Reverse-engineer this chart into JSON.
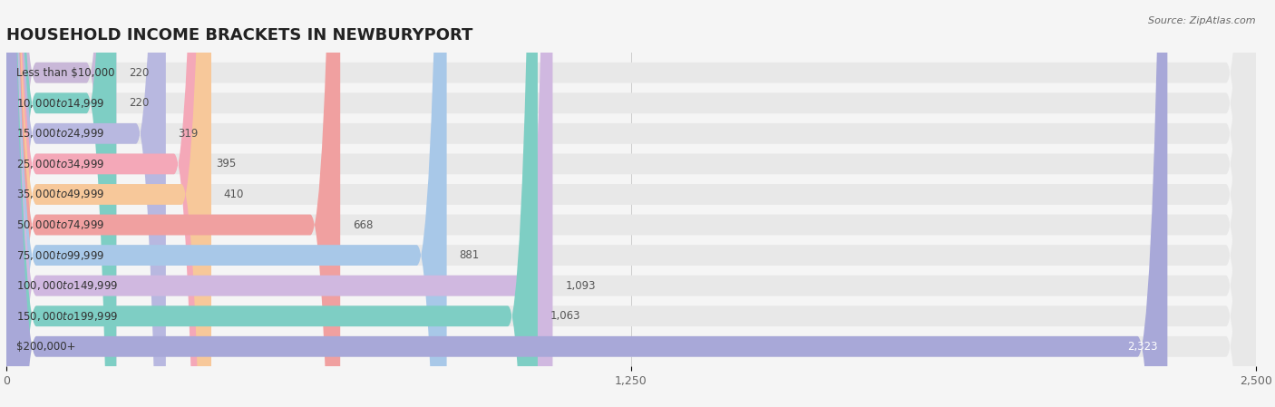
{
  "title": "HOUSEHOLD INCOME BRACKETS IN NEWBURYPORT",
  "source": "Source: ZipAtlas.com",
  "categories": [
    "Less than $10,000",
    "$10,000 to $14,999",
    "$15,000 to $24,999",
    "$25,000 to $34,999",
    "$35,000 to $49,999",
    "$50,000 to $74,999",
    "$75,000 to $99,999",
    "$100,000 to $149,999",
    "$150,000 to $199,999",
    "$200,000+"
  ],
  "values": [
    220,
    220,
    319,
    395,
    410,
    668,
    881,
    1093,
    1063,
    2323
  ],
  "bar_colors": [
    "#c9b8d8",
    "#7ecec4",
    "#b8b8e0",
    "#f4a8b8",
    "#f7c89a",
    "#f0a0a0",
    "#a8c8e8",
    "#d0b8e0",
    "#7ecec4",
    "#a8a8d8"
  ],
  "xlim": [
    0,
    2500
  ],
  "xticks": [
    0,
    1250,
    2500
  ],
  "background_color": "#f5f5f5",
  "bar_background_color": "#e8e8e8",
  "title_fontsize": 13,
  "label_fontsize": 8.5,
  "value_fontsize": 8.5,
  "bar_height": 0.68,
  "bar_spacing": 1.0
}
